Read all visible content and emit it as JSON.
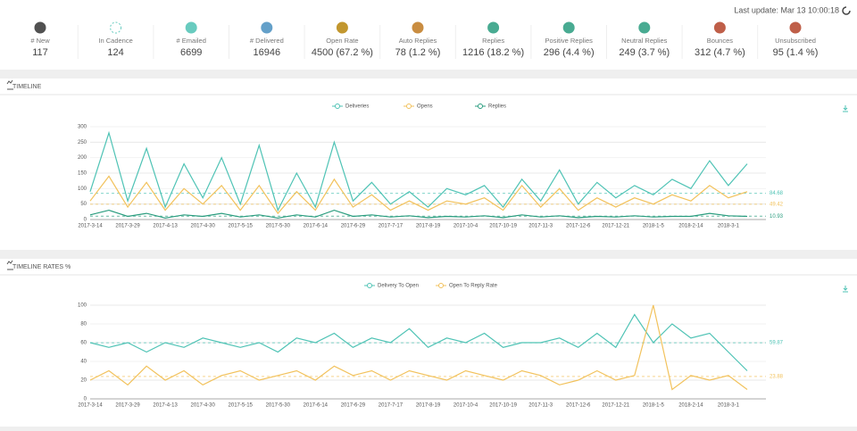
{
  "header": {
    "last_update": "Last update: Mar 13 10:00:18"
  },
  "stats": [
    {
      "label": "# New",
      "value": 117
    },
    {
      "label": "In Cadence",
      "value": 124
    },
    {
      "label": "# Emailed",
      "value": 6699
    },
    {
      "label": "# Delivered",
      "value": 16946
    },
    {
      "label": "Open Rate",
      "value": "4500 (67.2 %)"
    },
    {
      "label": "Auto Replies",
      "value": "78 (1.2 %)"
    },
    {
      "label": "Replies",
      "value": "1216 (18.2 %)"
    },
    {
      "label": "Positive Replies",
      "value": "296 (4.4 %)"
    },
    {
      "label": "Neutral Replies",
      "value": "249 (3.7 %)"
    },
    {
      "label": "Bounces",
      "value": "312 (4.7 %)"
    },
    {
      "label": "Unsubscribed",
      "value": "95 (1.4 %)"
    }
  ],
  "sections": [
    "TIMELINE",
    "TIMELINE RATES %"
  ],
  "chart_data": [
    {
      "type": "line",
      "categories": [
        "2017-3-14",
        null,
        "2017-3-29",
        null,
        "2017-4-13",
        null,
        "2017-4-30",
        null,
        "2017-5-15",
        null,
        "2017-5-30",
        null,
        "2017-6-14",
        null,
        "2017-6-29",
        null,
        "2017-7-17",
        null,
        "2017-8-19",
        null,
        "2017-10-4",
        null,
        "2017-10-19",
        null,
        "2017-11-3",
        null,
        "2017-12-6",
        null,
        "2017-12-21",
        null,
        "2018-1-5",
        null,
        "2018-2-14",
        null,
        "2018-3-1",
        null
      ],
      "series": [
        {
          "name": "Deliveries",
          "color": "#4fc3b5",
          "values": [
            90,
            280,
            60,
            230,
            40,
            180,
            70,
            200,
            50,
            240,
            30,
            150,
            40,
            250,
            60,
            120,
            50,
            90,
            40,
            100,
            80,
            110,
            40,
            130,
            60,
            160,
            50,
            120,
            70,
            110,
            80,
            130,
            100,
            190,
            110,
            180
          ]
        },
        {
          "name": "Opens",
          "color": "#f2c25c",
          "values": [
            60,
            140,
            40,
            120,
            30,
            100,
            50,
            110,
            30,
            110,
            20,
            90,
            30,
            130,
            40,
            80,
            30,
            60,
            30,
            60,
            50,
            70,
            30,
            110,
            40,
            100,
            30,
            70,
            40,
            70,
            50,
            80,
            60,
            110,
            70,
            90
          ]
        },
        {
          "name": "Replies",
          "color": "#2a9d7f",
          "values": [
            15,
            30,
            10,
            20,
            5,
            15,
            10,
            20,
            8,
            15,
            5,
            15,
            8,
            30,
            10,
            15,
            8,
            12,
            6,
            10,
            8,
            12,
            6,
            15,
            8,
            12,
            6,
            10,
            8,
            12,
            8,
            10,
            10,
            20,
            12,
            10
          ]
        }
      ],
      "reference_lines": [
        {
          "value": 84.68,
          "color": "#4fc3b5"
        },
        {
          "value": 49.42,
          "color": "#f2c25c"
        },
        {
          "value": 10.93,
          "color": "#2a9d7f"
        }
      ],
      "ylim": [
        0,
        300
      ],
      "yticks": [
        0,
        50,
        100,
        150,
        200,
        250,
        300
      ],
      "grid": true
    },
    {
      "type": "line",
      "categories": [
        "2017-3-14",
        null,
        "2017-3-29",
        null,
        "2017-4-13",
        null,
        "2017-4-30",
        null,
        "2017-5-15",
        null,
        "2017-5-30",
        null,
        "2017-6-14",
        null,
        "2017-6-29",
        null,
        "2017-7-17",
        null,
        "2017-8-19",
        null,
        "2017-10-4",
        null,
        "2017-10-19",
        null,
        "2017-11-3",
        null,
        "2017-12-6",
        null,
        "2017-12-21",
        null,
        "2018-1-5",
        null,
        "2018-2-14",
        null,
        "2018-3-1",
        null
      ],
      "series": [
        {
          "name": "Delivery To Open",
          "color": "#4fc3b5",
          "values": [
            60,
            55,
            60,
            50,
            60,
            55,
            65,
            60,
            55,
            60,
            50,
            65,
            60,
            70,
            55,
            65,
            60,
            75,
            55,
            65,
            60,
            70,
            55,
            60,
            60,
            65,
            55,
            70,
            55,
            90,
            60,
            80,
            65,
            70,
            50,
            30
          ]
        },
        {
          "name": "Open To Reply Rate",
          "color": "#f2c25c",
          "values": [
            20,
            30,
            15,
            35,
            20,
            30,
            15,
            25,
            30,
            20,
            25,
            30,
            20,
            35,
            25,
            30,
            20,
            30,
            25,
            20,
            30,
            25,
            20,
            30,
            25,
            15,
            20,
            30,
            20,
            25,
            100,
            10,
            25,
            20,
            25,
            10
          ]
        }
      ],
      "reference_lines": [
        {
          "value": 59.87,
          "color": "#4fc3b5"
        },
        {
          "value": 23.88,
          "color": "#f2c25c"
        }
      ],
      "ylim": [
        0,
        100
      ],
      "yticks": [
        0,
        20,
        40,
        60,
        80,
        100
      ],
      "grid": true
    }
  ]
}
